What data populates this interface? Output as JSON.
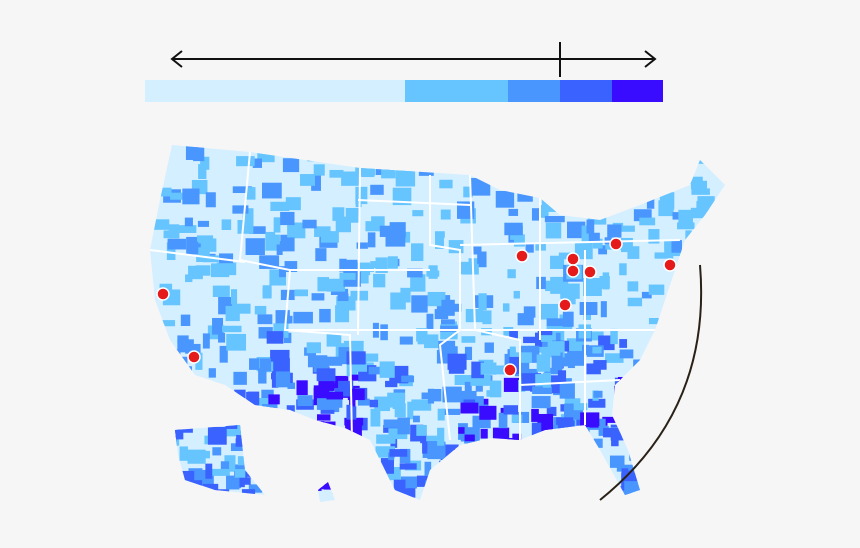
{
  "legend": {
    "colors": [
      "#d4efff",
      "#66c4ff",
      "#4a96ff",
      "#3a62ff",
      "#3a0cff"
    ]
  }
}
